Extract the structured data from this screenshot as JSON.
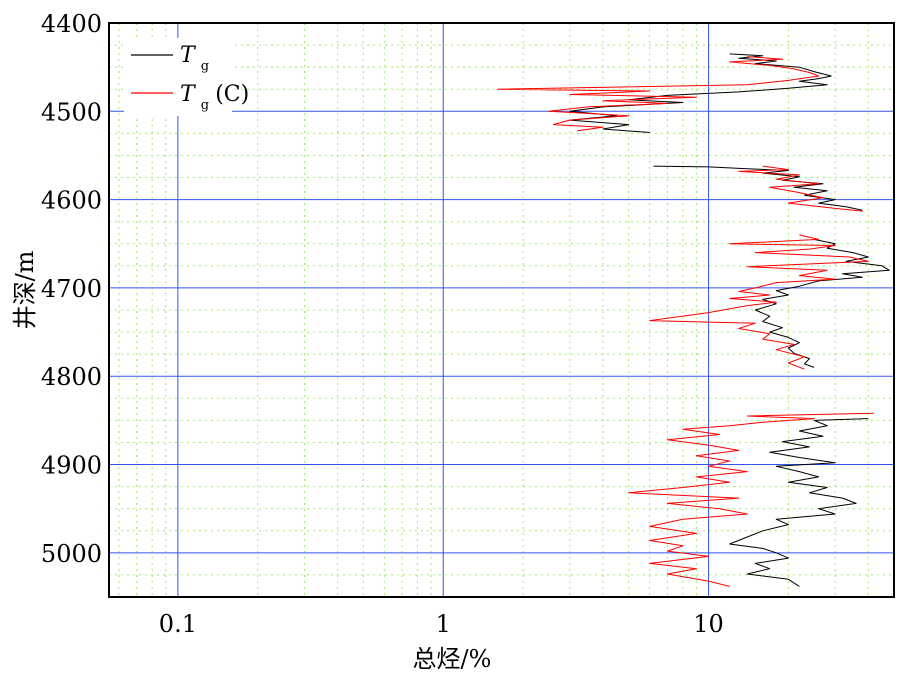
{
  "chart_data": {
    "type": "line",
    "xlabel": "总烃/%",
    "ylabel": "井深/m",
    "xscale": "log",
    "xlim": [
      0.055,
      50
    ],
    "ylim": [
      5050,
      4400
    ],
    "x_ticks": [
      0.1,
      1,
      10
    ],
    "x_tick_labels": [
      "0.1",
      "1",
      "10"
    ],
    "y_ticks": [
      4400,
      4500,
      4600,
      4700,
      4800,
      4900,
      5000
    ],
    "y_tick_labels": [
      "4400",
      "4500",
      "4600",
      "4700",
      "4800",
      "4900",
      "5000"
    ],
    "grid": true,
    "legend": "top-left",
    "series": [
      {
        "name": "Tg",
        "color": "#000000",
        "points": [
          [
            12,
            4435
          ],
          [
            16,
            4437
          ],
          [
            13,
            4440
          ],
          [
            18,
            4443
          ],
          [
            15,
            4446
          ],
          [
            22,
            4450
          ],
          [
            25,
            4455
          ],
          [
            29,
            4460
          ],
          [
            26,
            4463
          ],
          [
            22,
            4466
          ],
          [
            28,
            4470
          ],
          [
            20,
            4474
          ],
          [
            13,
            4478
          ],
          [
            7,
            4482
          ],
          [
            5,
            4487
          ],
          [
            8,
            4490
          ],
          [
            4,
            4495
          ],
          [
            3,
            4500
          ],
          [
            4.5,
            4505
          ],
          [
            3,
            4510
          ],
          [
            5,
            4515
          ],
          [
            4,
            4520
          ],
          [
            6,
            4524
          ],
          [
            6.2,
            4562
          ],
          [
            10,
            4563
          ],
          [
            14,
            4565
          ],
          [
            20,
            4567
          ],
          [
            16,
            4570
          ],
          [
            22,
            4574
          ],
          [
            19,
            4578
          ],
          [
            27,
            4582
          ],
          [
            21,
            4586
          ],
          [
            28,
            4590
          ],
          [
            23,
            4595
          ],
          [
            30,
            4600
          ],
          [
            26,
            4604
          ],
          [
            33,
            4608
          ],
          [
            38,
            4612
          ],
          [
            25,
            4645
          ],
          [
            30,
            4650
          ],
          [
            28,
            4655
          ],
          [
            35,
            4660
          ],
          [
            40,
            4665
          ],
          [
            33,
            4670
          ],
          [
            45,
            4675
          ],
          [
            48,
            4680
          ],
          [
            32,
            4684
          ],
          [
            38,
            4688
          ],
          [
            26,
            4692
          ],
          [
            22,
            4698
          ],
          [
            18,
            4703
          ],
          [
            20,
            4708
          ],
          [
            16,
            4713
          ],
          [
            18,
            4718
          ],
          [
            15,
            4725
          ],
          [
            17,
            4732
          ],
          [
            16,
            4738
          ],
          [
            19,
            4745
          ],
          [
            17,
            4750
          ],
          [
            20,
            4756
          ],
          [
            22,
            4762
          ],
          [
            20,
            4768
          ],
          [
            21,
            4774
          ],
          [
            24,
            4780
          ],
          [
            23,
            4786
          ],
          [
            25,
            4790
          ],
          [
            40,
            4848
          ],
          [
            25,
            4850
          ],
          [
            28,
            4856
          ],
          [
            22,
            4862
          ],
          [
            27,
            4868
          ],
          [
            19,
            4874
          ],
          [
            24,
            4880
          ],
          [
            17,
            4886
          ],
          [
            22,
            4892
          ],
          [
            30,
            4898
          ],
          [
            18,
            4902
          ],
          [
            22,
            4908
          ],
          [
            26,
            4914
          ],
          [
            20,
            4920
          ],
          [
            28,
            4926
          ],
          [
            24,
            4932
          ],
          [
            32,
            4938
          ],
          [
            36,
            4944
          ],
          [
            26,
            4950
          ],
          [
            30,
            4956
          ],
          [
            18,
            4962
          ],
          [
            20,
            4968
          ],
          [
            16,
            4975
          ],
          [
            14,
            4982
          ],
          [
            12,
            4990
          ],
          [
            16,
            4995
          ],
          [
            18,
            5000
          ],
          [
            20,
            5006
          ],
          [
            15,
            5012
          ],
          [
            17,
            5018
          ],
          [
            14,
            5024
          ],
          [
            20,
            5030
          ],
          [
            22,
            5038
          ]
        ]
      },
      {
        "name": "Tg(C)",
        "color": "#ff0000",
        "points": [
          [
            14,
            4438
          ],
          [
            19,
            4441
          ],
          [
            12,
            4444
          ],
          [
            17,
            4448
          ],
          [
            21,
            4452
          ],
          [
            24,
            4456
          ],
          [
            26,
            4460
          ],
          [
            20,
            4465
          ],
          [
            14,
            4470
          ],
          [
            1.6,
            4475
          ],
          [
            6,
            4477
          ],
          [
            3,
            4481
          ],
          [
            9,
            4484
          ],
          [
            4,
            4488
          ],
          [
            7,
            4491
          ],
          [
            3.5,
            4495
          ],
          [
            2.5,
            4500
          ],
          [
            5,
            4505
          ],
          [
            3,
            4510
          ],
          [
            2.6,
            4515
          ],
          [
            4,
            4518
          ],
          [
            3.2,
            4522
          ],
          [
            16,
            4562
          ],
          [
            20,
            4566
          ],
          [
            13,
            4568
          ],
          [
            22,
            4572
          ],
          [
            18,
            4577
          ],
          [
            26,
            4582
          ],
          [
            17,
            4586
          ],
          [
            22,
            4592
          ],
          [
            27,
            4598
          ],
          [
            20,
            4604
          ],
          [
            30,
            4610
          ],
          [
            38,
            4613
          ],
          [
            22,
            4640
          ],
          [
            26,
            4645
          ],
          [
            12,
            4650
          ],
          [
            30,
            4652
          ],
          [
            24,
            4656
          ],
          [
            15,
            4660
          ],
          [
            34,
            4665
          ],
          [
            40,
            4670
          ],
          [
            14,
            4676
          ],
          [
            28,
            4680
          ],
          [
            22,
            4686
          ],
          [
            30,
            4690
          ],
          [
            18,
            4694
          ],
          [
            15,
            4700
          ],
          [
            13,
            4704
          ],
          [
            17,
            4708
          ],
          [
            12,
            4712
          ],
          [
            18,
            4716
          ],
          [
            14,
            4720
          ],
          [
            10,
            4728
          ],
          [
            6,
            4737
          ],
          [
            15,
            4740
          ],
          [
            13,
            4746
          ],
          [
            17,
            4752
          ],
          [
            16,
            4758
          ],
          [
            21,
            4764
          ],
          [
            18,
            4770
          ],
          [
            23,
            4778
          ],
          [
            20,
            4785
          ],
          [
            23,
            4792
          ],
          [
            42,
            4842
          ],
          [
            14,
            4845
          ],
          [
            25,
            4848
          ],
          [
            16,
            4852
          ],
          [
            12,
            4856
          ],
          [
            8,
            4860
          ],
          [
            11,
            4866
          ],
          [
            7,
            4872
          ],
          [
            10,
            4878
          ],
          [
            13,
            4884
          ],
          [
            9,
            4890
          ],
          [
            12,
            4896
          ],
          [
            10,
            4902
          ],
          [
            14,
            4908
          ],
          [
            9,
            4914
          ],
          [
            12,
            4920
          ],
          [
            8,
            4926
          ],
          [
            5,
            4932
          ],
          [
            13,
            4938
          ],
          [
            7,
            4944
          ],
          [
            11,
            4950
          ],
          [
            14,
            4956
          ],
          [
            8,
            4962
          ],
          [
            6,
            4970
          ],
          [
            9,
            4978
          ],
          [
            6,
            4986
          ],
          [
            8,
            4992
          ],
          [
            7,
            4998
          ],
          [
            10,
            5004
          ],
          [
            6,
            5012
          ],
          [
            9,
            5018
          ],
          [
            7,
            5024
          ],
          [
            10,
            5032
          ],
          [
            12,
            5038
          ]
        ]
      }
    ]
  },
  "legend": {
    "items": [
      {
        "base": "T",
        "sub": "g",
        "suffix": "",
        "color": "#000000"
      },
      {
        "base": "T",
        "sub": "g",
        "suffix": "(C)",
        "color": "#ff0000"
      }
    ]
  },
  "colors": {
    "major_grid": "#3355ee",
    "minor_grid": "#99ee66",
    "frame": "#000000"
  }
}
